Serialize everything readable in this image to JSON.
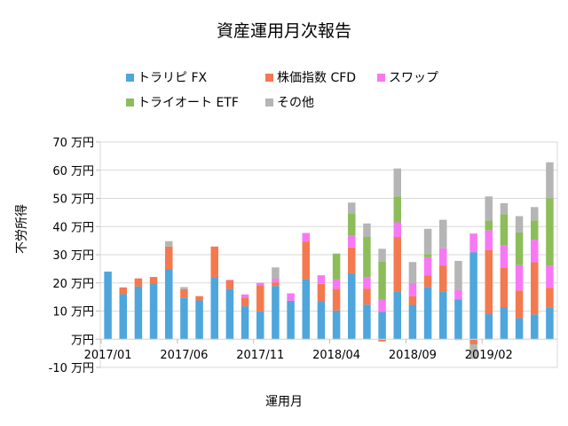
{
  "chart_data": {
    "type": "bar",
    "stacked": true,
    "title": "資産運用月次報告",
    "xlabel": "運用月",
    "ylabel": "不労所得",
    "ylim": [
      -10,
      70
    ],
    "y_ticks": [
      {
        "value": 70,
        "label": "70 万円"
      },
      {
        "value": 60,
        "label": "60 万円"
      },
      {
        "value": 50,
        "label": "50 万円"
      },
      {
        "value": 40,
        "label": "40 万円"
      },
      {
        "value": 30,
        "label": "30 万円"
      },
      {
        "value": 20,
        "label": "20 万円"
      },
      {
        "value": 10,
        "label": "10 万円"
      },
      {
        "value": 0,
        "label": "万円"
      },
      {
        "value": -10,
        "label": "-10 万円"
      }
    ],
    "grid": true,
    "legend": "top",
    "categories": [
      "2017/01",
      "2017/02",
      "2017/03",
      "2017/04",
      "2017/05",
      "2017/06",
      "2017/07",
      "2017/08",
      "2017/09",
      "2017/10",
      "2017/11",
      "2017/12",
      "2018/01",
      "2018/02",
      "2018/03",
      "2018/04",
      "2018/05",
      "2018/06",
      "2018/07",
      "2018/08",
      "2018/09",
      "2018/10",
      "2018/11",
      "2018/12",
      "2019/01",
      "2019/02",
      "2019/03",
      "2019/04",
      "2019/05",
      "2019/06"
    ],
    "x_tick_labels": [
      "2017/01",
      "2017/06",
      "2017/11",
      "2018/04",
      "2018/09",
      "2019/02"
    ],
    "series": [
      {
        "name": "トラリピ FX",
        "color": "#4ea6dc",
        "values": [
          24,
          16,
          18.7,
          19.9,
          24.8,
          14.8,
          13.8,
          21.8,
          17.9,
          11.7,
          9.9,
          18.9,
          13.7,
          21.3,
          13.6,
          10.2,
          23.4,
          12.3,
          9.7,
          16.9,
          12.2,
          18.6,
          16.8,
          14.2,
          30.9,
          8.9,
          11.4,
          7.5,
          8.8,
          11.3
        ]
      },
      {
        "name": "株価指数 CFD",
        "color": "#f4794e",
        "values": [
          0,
          2.4,
          2.9,
          2.2,
          8.1,
          3,
          1.5,
          11.1,
          3,
          3,
          9.3,
          1.3,
          0,
          13.4,
          6.1,
          7.7,
          9.2,
          5.7,
          -0.8,
          19.4,
          3.1,
          4,
          9.4,
          -0.3,
          -1.8,
          22.8,
          14.1,
          9.8,
          18.5,
          7
        ]
      },
      {
        "name": "スワップ",
        "color": "#f778f5",
        "values": [
          0,
          0,
          0,
          0,
          0,
          0,
          0,
          0,
          0.2,
          1.2,
          0.8,
          1.3,
          2.6,
          3,
          3,
          3.3,
          4.1,
          4.1,
          4.4,
          5.2,
          4.7,
          6.5,
          6.1,
          3.2,
          6.6,
          7,
          7.9,
          9,
          8,
          7.8
        ]
      },
      {
        "name": "トライオート ETF",
        "color": "#8cbd5a",
        "values": [
          0,
          0,
          0,
          0,
          0,
          0,
          0,
          0,
          0,
          0,
          0,
          0,
          0,
          0,
          0,
          9.2,
          8,
          14.2,
          13.4,
          9.2,
          0,
          1.1,
          0,
          0,
          0,
          3.4,
          10.9,
          11.6,
          6.9,
          24
        ]
      },
      {
        "name": "その他",
        "color": "#b5b5b5",
        "values": [
          0,
          0,
          0,
          0,
          1.9,
          0.7,
          0,
          0,
          0,
          0,
          0,
          4,
          0,
          0,
          0,
          0,
          3.8,
          4.8,
          4.6,
          9.9,
          7.4,
          9,
          10.1,
          10.4,
          -5.2,
          8.6,
          4,
          5.8,
          4.7,
          12.7
        ]
      }
    ]
  }
}
